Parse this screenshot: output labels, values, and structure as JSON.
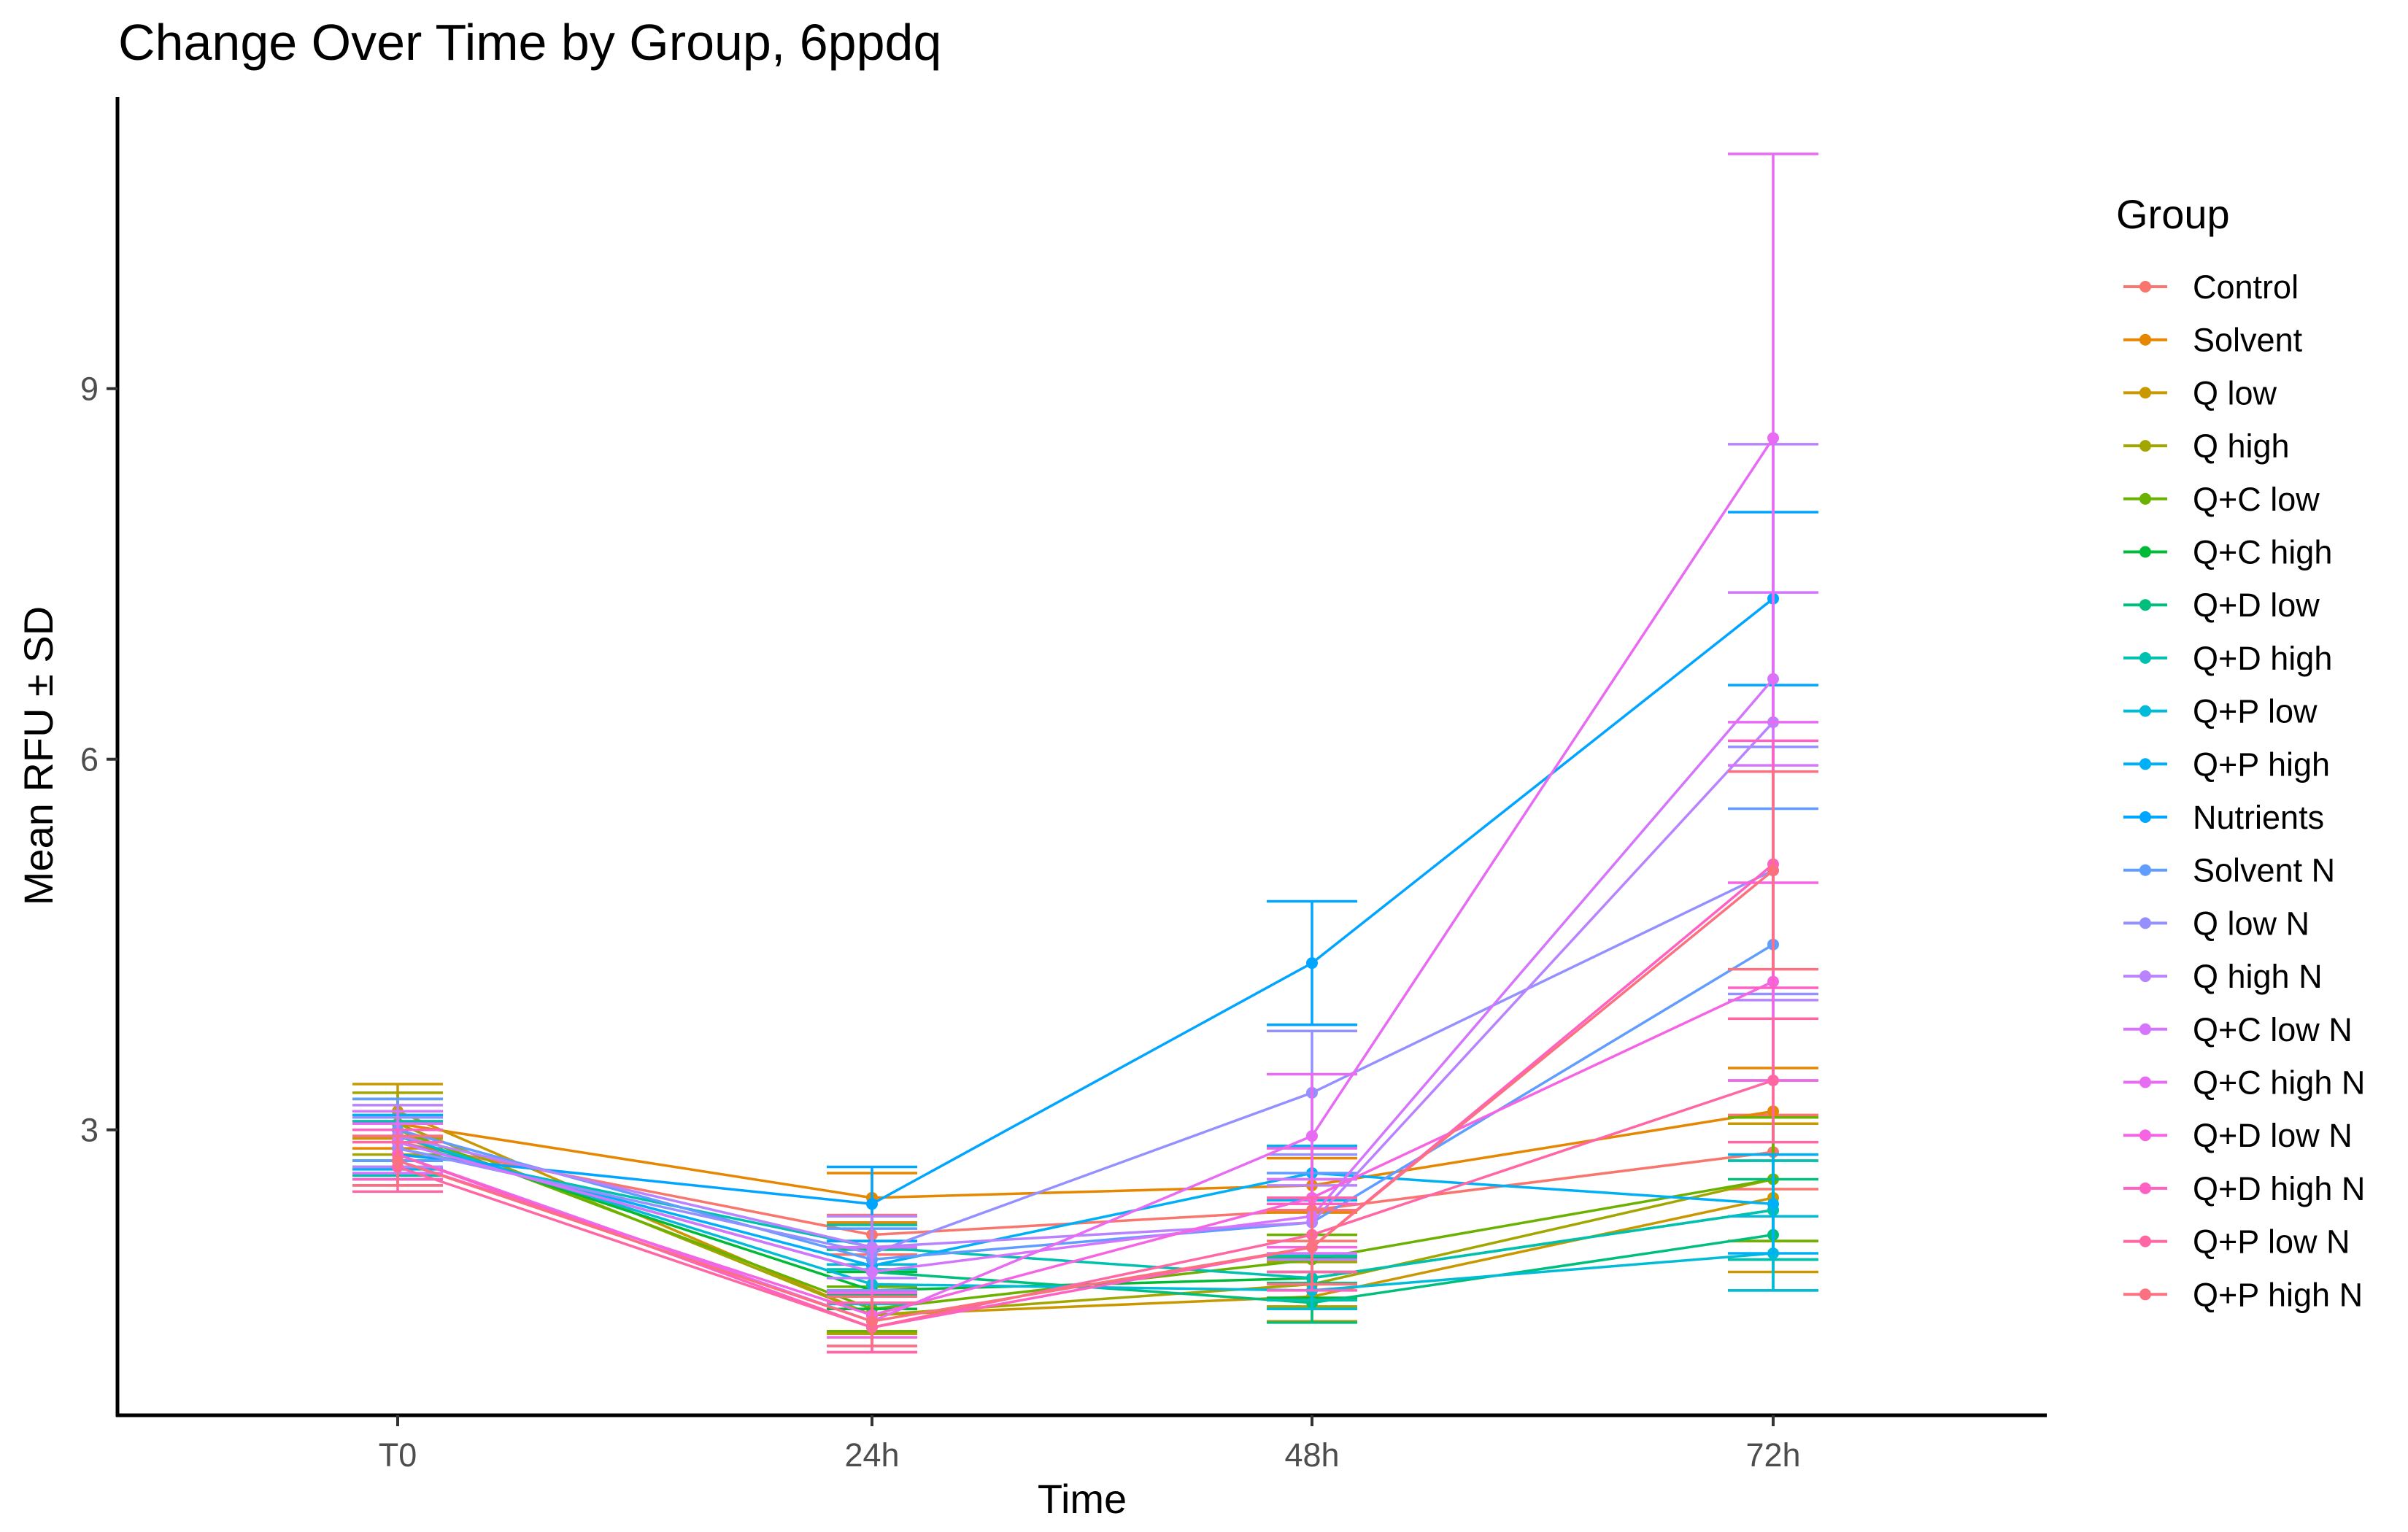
{
  "chart_data": {
    "type": "line",
    "title": "Change Over Time by Group, 6ppdq",
    "xlabel": "Time",
    "ylabel": "Mean RFU ± SD",
    "categories": [
      "T0",
      "24h",
      "48h",
      "72h"
    ],
    "ylim": [
      0.7,
      10.9
    ],
    "yticks": [
      3,
      6,
      9
    ],
    "grid": false,
    "legend": {
      "title": "Group",
      "position": "right"
    },
    "series": [
      {
        "name": "Control",
        "color": "#F8766D",
        "values": [
          2.9,
          2.15,
          2.35,
          2.82
        ],
        "sd": [
          0.2,
          0.16,
          0.25,
          0.3
        ]
      },
      {
        "name": "Solvent",
        "color": "#E58700",
        "values": [
          3.05,
          2.45,
          2.55,
          3.15
        ],
        "sd": [
          0.2,
          0.2,
          0.22,
          0.35
        ]
      },
      {
        "name": "Q low",
        "color": "#C99800",
        "values": [
          3.15,
          1.5,
          1.65,
          2.45
        ],
        "sd": [
          0.22,
          0.15,
          0.2,
          0.6
        ]
      },
      {
        "name": "Q high",
        "color": "#A3A500",
        "values": [
          3.05,
          1.5,
          1.75,
          2.6
        ],
        "sd": [
          0.25,
          0.15,
          0.18,
          0.5
        ]
      },
      {
        "name": "Q+C low",
        "color": "#6BB100",
        "values": [
          3.0,
          1.55,
          1.95,
          2.6
        ],
        "sd": [
          0.25,
          0.18,
          0.2,
          0.5
        ]
      },
      {
        "name": "Q+C high",
        "color": "#00BA38",
        "values": [
          2.95,
          1.7,
          1.8,
          2.35
        ],
        "sd": [
          0.2,
          0.15,
          0.16,
          0.4
        ]
      },
      {
        "name": "Q+D low",
        "color": "#00BF7D",
        "values": [
          2.9,
          1.85,
          1.6,
          2.15
        ],
        "sd": [
          0.2,
          0.18,
          0.16,
          0.45
        ]
      },
      {
        "name": "Q+D high",
        "color": "#00C0AF",
        "values": [
          2.85,
          2.05,
          1.8,
          2.35
        ],
        "sd": [
          0.22,
          0.18,
          0.18,
          0.4
        ]
      },
      {
        "name": "Q+P low",
        "color": "#00BCD8",
        "values": [
          2.95,
          1.75,
          1.7,
          2.0
        ],
        "sd": [
          0.2,
          0.16,
          0.15,
          0.3
        ]
      },
      {
        "name": "Q+P high",
        "color": "#00B0F6",
        "values": [
          2.9,
          1.9,
          2.65,
          2.4
        ],
        "sd": [
          0.22,
          0.2,
          0.22,
          0.4
        ]
      },
      {
        "name": "Nutrients",
        "color": "#00A5FF",
        "values": [
          2.8,
          2.4,
          4.35,
          7.3
        ],
        "sd": [
          0.2,
          0.3,
          0.5,
          0.7
        ]
      },
      {
        "name": "Solvent N",
        "color": "#619CFF",
        "values": [
          3.0,
          1.95,
          2.25,
          4.5
        ],
        "sd": [
          0.25,
          0.25,
          0.4,
          1.1
        ]
      },
      {
        "name": "Q low N",
        "color": "#9590FF",
        "values": [
          2.85,
          2.0,
          3.3,
          5.1
        ],
        "sd": [
          0.25,
          0.3,
          0.5,
          1.0
        ]
      },
      {
        "name": "Q high N",
        "color": "#B983FF",
        "values": [
          2.95,
          2.05,
          2.25,
          6.3
        ],
        "sd": [
          0.25,
          0.25,
          0.3,
          2.25
        ]
      },
      {
        "name": "Q+C low N",
        "color": "#D575FE",
        "values": [
          2.9,
          1.85,
          2.3,
          6.65
        ],
        "sd": [
          0.25,
          0.2,
          0.3,
          0.7
        ]
      },
      {
        "name": "Q+C high N",
        "color": "#E76BF3",
        "values": [
          2.8,
          1.45,
          2.95,
          8.6
        ],
        "sd": [
          0.25,
          0.2,
          0.5,
          2.3
        ]
      },
      {
        "name": "Q+D low N",
        "color": "#F564E3",
        "values": [
          2.75,
          1.5,
          2.45,
          4.2
        ],
        "sd": [
          0.2,
          0.18,
          0.4,
          0.8
        ]
      },
      {
        "name": "Q+D high N",
        "color": "#FF61C3",
        "values": [
          2.8,
          1.4,
          2.05,
          5.15
        ],
        "sd": [
          0.2,
          0.2,
          0.35,
          1.0
        ]
      },
      {
        "name": "Q+P low N",
        "color": "#FF67A4",
        "values": [
          2.7,
          1.4,
          2.15,
          3.4
        ],
        "sd": [
          0.2,
          0.2,
          0.3,
          0.5
        ]
      },
      {
        "name": "Q+P high N",
        "color": "#FC717F",
        "values": [
          2.75,
          1.45,
          2.05,
          5.1
        ],
        "sd": [
          0.2,
          0.2,
          0.3,
          0.8
        ]
      }
    ]
  }
}
